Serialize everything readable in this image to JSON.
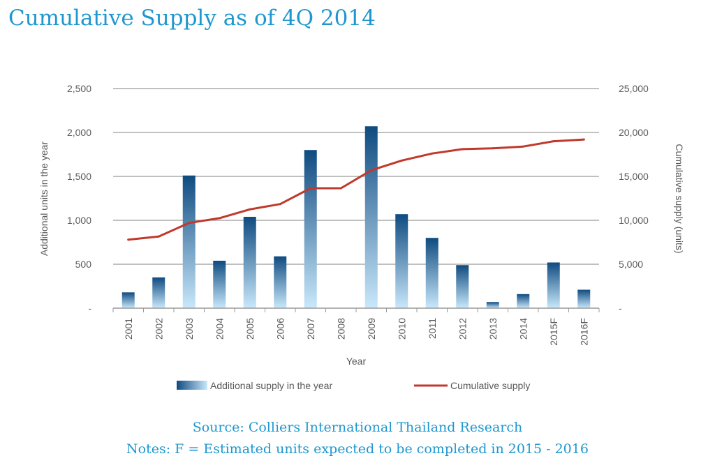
{
  "title": "Cumulative Supply as of 4Q 2014",
  "source": "Source: Colliers International Thailand Research",
  "notes": "Notes: F = Estimated units expected to be completed in 2015 - 2016",
  "colors": {
    "title": "#1e97cf",
    "bar_dark": "#0f4b80",
    "bar_light": "#c9e8fb",
    "line": "#c0392b",
    "grid": "#9a9a9a",
    "text": "#595959"
  },
  "chart_data": {
    "type": "bar+line",
    "categories": [
      "2001",
      "2002",
      "2003",
      "2004",
      "2005",
      "2006",
      "2007",
      "2008",
      "2009",
      "2010",
      "2011",
      "2012",
      "2013",
      "2014",
      "2015F",
      "2016F"
    ],
    "series": [
      {
        "name": "Additional supply in the year",
        "type": "bar",
        "axis": "left",
        "values": [
          180,
          350,
          1510,
          540,
          1040,
          590,
          1800,
          0,
          2070,
          1070,
          800,
          490,
          70,
          160,
          520,
          210
        ]
      },
      {
        "name": "Cumulative supply",
        "type": "line",
        "axis": "right",
        "values": [
          7800,
          8150,
          9700,
          10250,
          11250,
          11850,
          13650,
          13650,
          15700,
          16800,
          17600,
          18100,
          18200,
          18400,
          19000,
          19200
        ]
      }
    ],
    "xlabel": "Year",
    "ylabel_left": "Additional units in the year",
    "ylabel_right": "Cumulative  supply (units)",
    "ylim_left": [
      0,
      2500
    ],
    "ylim_right": [
      0,
      25000
    ],
    "yticks_left": [
      "-",
      "500",
      "1,000",
      "1,500",
      "2,000",
      "2,500"
    ],
    "yticks_right": [
      "-",
      "5,000",
      "10,000",
      "15,000",
      "20,000",
      "25,000"
    ],
    "grid": true,
    "legend_position": "bottom"
  }
}
